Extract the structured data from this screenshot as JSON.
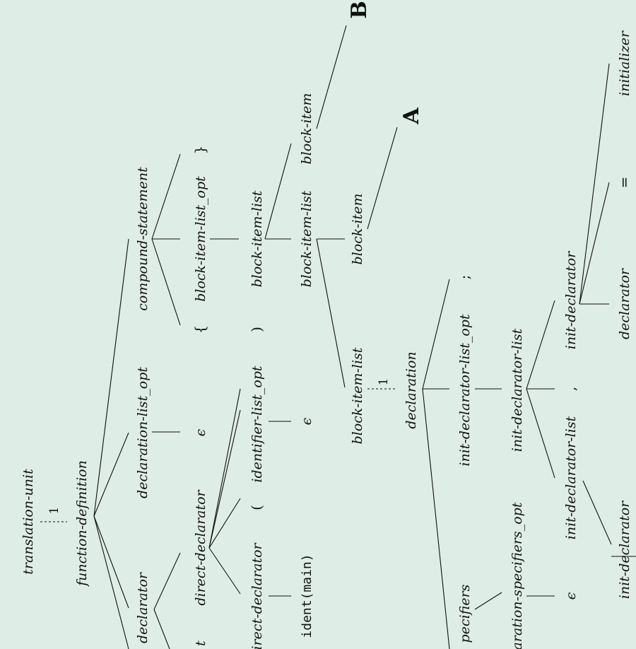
{
  "tree": {
    "root": "translation-unit",
    "root_count": "1",
    "function_definition": "function-definition",
    "declarator": "declarator",
    "declarator_fragment": "t",
    "direct_declarator": "direct-declarator",
    "direct_declarator_inner": "direct-declarator",
    "ident_main": "ident(main)",
    "lparen": "(",
    "identifier_list_opt": "identifier-list_opt",
    "epsilon_identifier": "ϵ",
    "rparen": ")",
    "declaration_list_opt": "declaration-list_opt",
    "epsilon_declaration_list": "ϵ",
    "compound_statement": "compound-statement",
    "lbrace": "{",
    "block_item_list_opt": "block-item-list_opt",
    "rbrace": "}",
    "block_item_list_1": "block-item-list",
    "block_item_list_2": "block-item-list",
    "block_item_top": "block-item",
    "marker_b": "B",
    "block_item_list_3": "block-item-list",
    "block_item_mid": "block-item",
    "marker_a": "A",
    "block_item_list_count": "1",
    "declaration": "declaration",
    "specifiers_fragment": "pecifiers",
    "declaration_specifiers_opt_fragment": "aration-specifiers_opt",
    "epsilon_specifiers": "ϵ",
    "init_declarator_list_opt": "init-declarator-list_opt",
    "semicolon": ";",
    "init_declarator_list_outer": "init-declarator-list",
    "init_declarator_list_inner": "init-declarator-list",
    "comma": ",",
    "init_declarator_right": "init-declarator",
    "init_declarator_left": "init-declarator",
    "declarator_bottom": "declarator",
    "equals": "=",
    "initializer": "initializer"
  }
}
